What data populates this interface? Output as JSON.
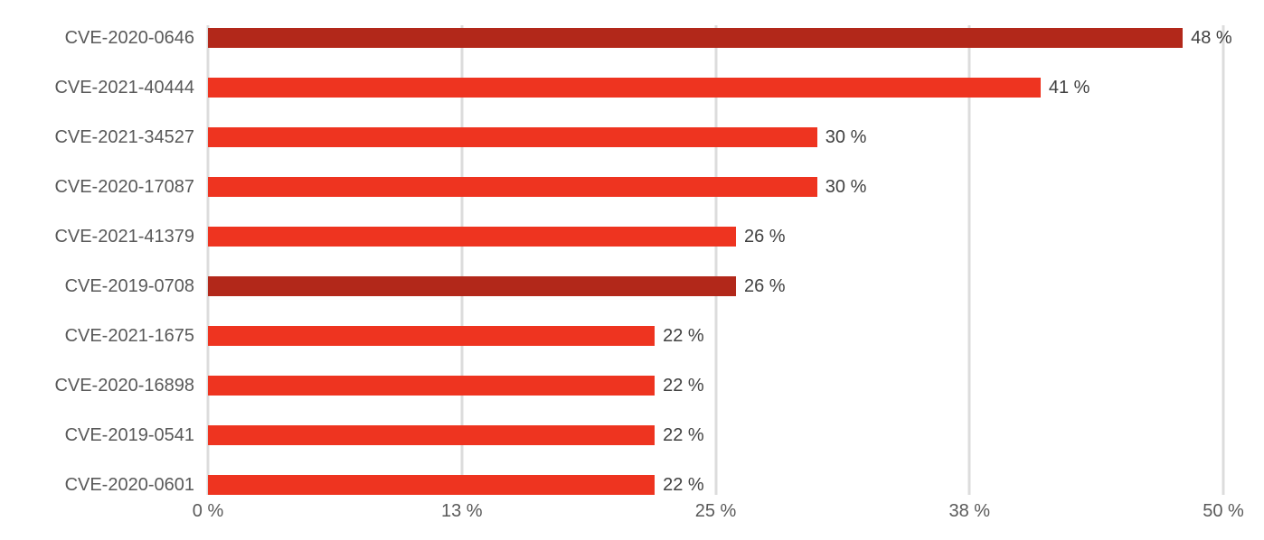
{
  "chart_data": {
    "type": "bar",
    "orientation": "horizontal",
    "title": "",
    "xlabel": "",
    "ylabel": "",
    "xlim": [
      0,
      50
    ],
    "grid": "vertical",
    "legend": "none",
    "categories": [
      "CVE-2020-0646",
      "CVE-2021-40444",
      "CVE-2021-34527",
      "CVE-2020-17087",
      "CVE-2021-41379",
      "CVE-2019-0708",
      "CVE-2021-1675",
      "CVE-2020-16898",
      "CVE-2019-0541",
      "CVE-2020-0601"
    ],
    "values": [
      48,
      41,
      30,
      30,
      26,
      26,
      22,
      22,
      22,
      22
    ],
    "value_labels": [
      "48 %",
      "41 %",
      "30 %",
      "30 %",
      "26 %",
      "26 %",
      "22 %",
      "22 %",
      "22 %",
      "22 %"
    ],
    "highlighted": [
      true,
      false,
      false,
      false,
      false,
      true,
      false,
      false,
      false,
      false
    ],
    "x_ticks": [
      {
        "label": "0 %",
        "value": 0
      },
      {
        "label": "13 %",
        "value": 12.5
      },
      {
        "label": "25 %",
        "value": 25
      },
      {
        "label": "38 %",
        "value": 37.5
      },
      {
        "label": "50 %",
        "value": 50
      }
    ],
    "colors": {
      "bar": "#EE3420",
      "bar_highlight": "#B2281A",
      "gridline": "#DCDCDC",
      "category_text": "#595959",
      "value_text": "#404040",
      "tick_text": "#595959"
    }
  }
}
